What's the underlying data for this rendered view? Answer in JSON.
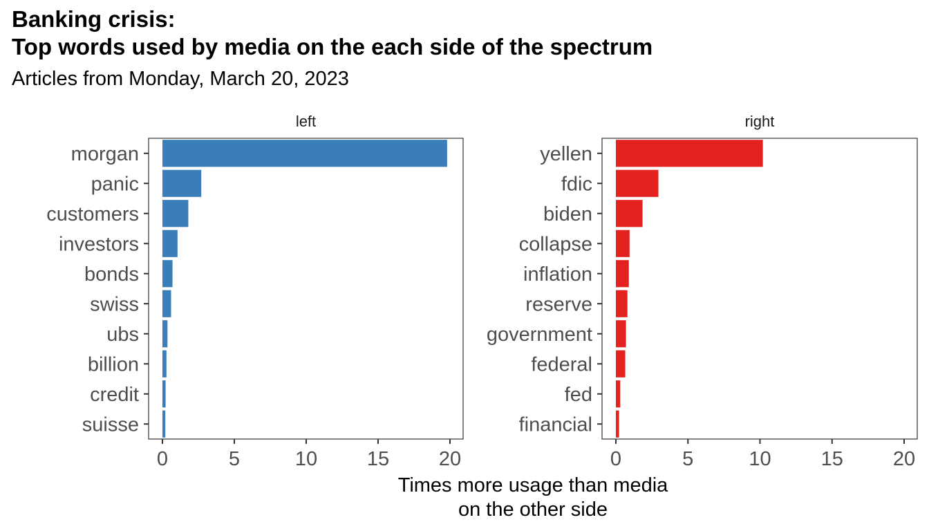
{
  "title_lines": [
    "Banking crisis:",
    "Top words used by media on the each side of the spectrum"
  ],
  "subtitle": "Articles from Monday, March 20, 2023",
  "chart_data": {
    "type": "bar",
    "orientation": "horizontal",
    "xlabel_lines": [
      "Times more usage than media",
      "on the other side"
    ],
    "xlim": [
      0,
      20
    ],
    "xticks": [
      0,
      5,
      10,
      15,
      20
    ],
    "grid": false,
    "panels": [
      {
        "name": "left",
        "color": "#3A7EB9",
        "categories": [
          "morgan",
          "panic",
          "customers",
          "investors",
          "bonds",
          "swiss",
          "ubs",
          "billion",
          "credit",
          "suisse"
        ],
        "values": [
          19.8,
          2.7,
          1.8,
          1.05,
          0.7,
          0.6,
          0.35,
          0.28,
          0.22,
          0.2
        ]
      },
      {
        "name": "right",
        "color": "#E3221F",
        "categories": [
          "yellen",
          "fdic",
          "biden",
          "collapse",
          "inflation",
          "reserve",
          "government",
          "federal",
          "fed",
          "financial"
        ],
        "values": [
          10.2,
          2.95,
          1.85,
          0.95,
          0.9,
          0.8,
          0.7,
          0.65,
          0.3,
          0.22
        ]
      }
    ]
  }
}
